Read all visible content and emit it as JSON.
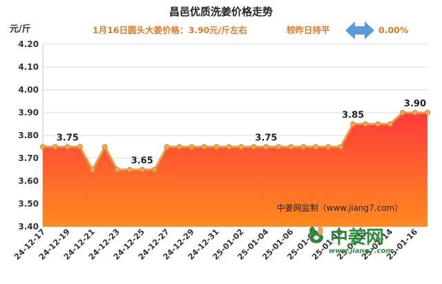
{
  "chart_data": {
    "type": "area",
    "title": "昌邑优质洗姜价格走势",
    "subtitle": "1月16日圆头大姜价格：3.90元/斤左右",
    "comparison_label": "较昨日持平",
    "comparison_value": "0.00%",
    "ylabel": "元/斤",
    "ylim": [
      3.4,
      4.2
    ],
    "yticks": [
      "3.40",
      "3.50",
      "3.60",
      "3.70",
      "3.80",
      "3.90",
      "4.00",
      "4.10",
      "4.20"
    ],
    "x_tick_labels": [
      "24-12-17",
      "24-12-19",
      "24-12-21",
      "24-12-23",
      "24-12-25",
      "24-12-27",
      "24-12-29",
      "24-12-31",
      "25-01-02",
      "25-01-04",
      "25-01-06",
      "25-01-08",
      "25-01-10",
      "25-01-12",
      "25-01-14",
      "25-01-16"
    ],
    "values": [
      3.75,
      3.75,
      3.75,
      3.75,
      3.65,
      3.75,
      3.65,
      3.65,
      3.65,
      3.65,
      3.75,
      3.75,
      3.75,
      3.75,
      3.75,
      3.75,
      3.75,
      3.75,
      3.75,
      3.75,
      3.75,
      3.75,
      3.75,
      3.75,
      3.75,
      3.85,
      3.85,
      3.85,
      3.85,
      3.9,
      3.9,
      3.9
    ],
    "data_labels": [
      {
        "index": 2,
        "text": "3.75"
      },
      {
        "index": 8,
        "text": "3.65"
      },
      {
        "index": 18,
        "text": "3.75"
      },
      {
        "index": 25,
        "text": "3.85"
      },
      {
        "index": 31,
        "text": "3.90"
      }
    ],
    "grid": true,
    "colors": {
      "line": "#e2a04a",
      "fill_top": "#ff3b3b",
      "fill_bottom": "#ff7a1a",
      "marker": "#e8a855",
      "accent": "#e87722",
      "arrow": "#5b9bd5"
    }
  },
  "watermark": {
    "credit": "中姜网监制（www.jiang7.com）",
    "logo_text": "中姜网",
    "logo_url": "www.jiang7.com"
  }
}
